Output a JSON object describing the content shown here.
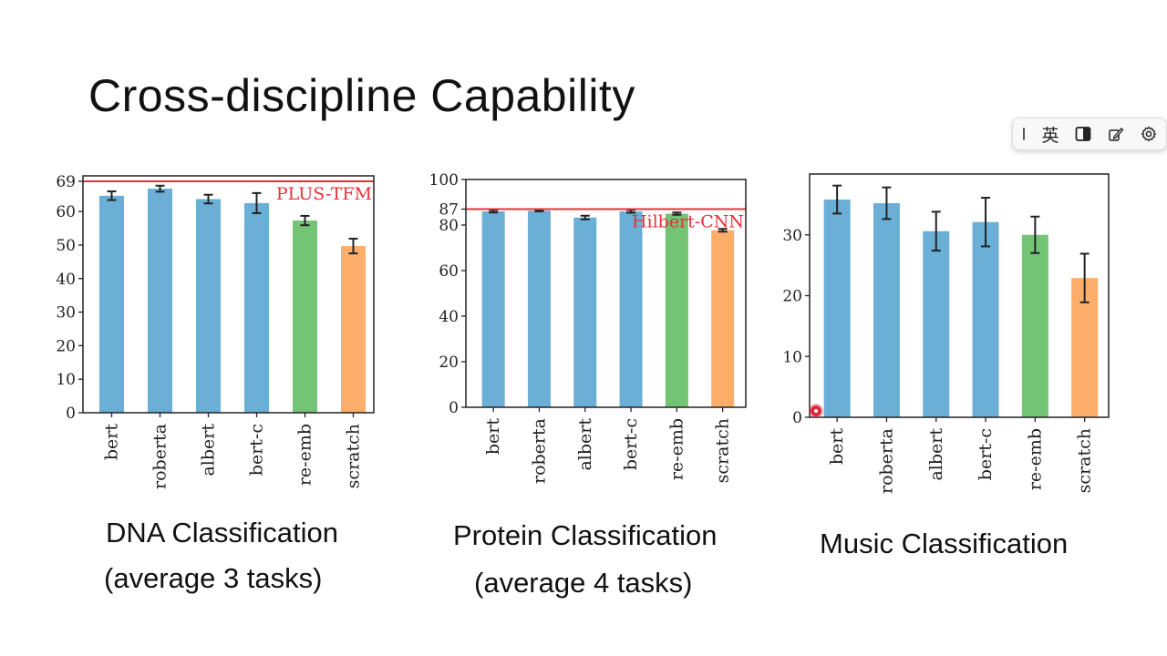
{
  "slide": {
    "title": "Cross-discipline Capability"
  },
  "ime_toolbar": {
    "mode_label": "英"
  },
  "chart_data": [
    {
      "type": "bar",
      "categories": [
        "bert",
        "roberta",
        "albert",
        "bert-c",
        "re-emb",
        "scratch"
      ],
      "values": [
        64.7,
        66.8,
        63.7,
        62.5,
        57.3,
        49.7
      ],
      "errors": [
        1.3,
        0.9,
        1.3,
        3.0,
        1.4,
        2.2
      ],
      "colors": [
        "#6baed6",
        "#6baed6",
        "#6baed6",
        "#6baed6",
        "#74c476",
        "#fdae6b"
      ],
      "ylim": [
        0,
        69
      ],
      "yticks": [
        "0",
        "10",
        "20",
        "30",
        "40",
        "50",
        "60",
        "69"
      ],
      "reference": {
        "value": 69,
        "label": "PLUS-TFM",
        "color": "#e8303a"
      },
      "caption": [
        "DNA Classification",
        "(average 3 tasks)"
      ]
    },
    {
      "type": "bar",
      "categories": [
        "bert",
        "roberta",
        "albert",
        "bert-c",
        "re-emb",
        "scratch"
      ],
      "values": [
        86.0,
        86.3,
        83.3,
        86.0,
        85.0,
        77.7
      ],
      "errors": [
        0.5,
        0.3,
        0.8,
        0.6,
        0.5,
        0.6
      ],
      "colors": [
        "#6baed6",
        "#6baed6",
        "#6baed6",
        "#6baed6",
        "#74c476",
        "#fdae6b"
      ],
      "ylim": [
        0,
        100
      ],
      "yticks": [
        "0",
        "20",
        "40",
        "60",
        "80",
        "87",
        "100"
      ],
      "reference": {
        "value": 87,
        "label": "Hilbert-CNN",
        "color": "#e8303a"
      },
      "caption": [
        "Protein Classification",
        "(average 4 tasks)"
      ]
    },
    {
      "type": "bar",
      "categories": [
        "bert",
        "roberta",
        "albert",
        "bert-c",
        "re-emb",
        "scratch"
      ],
      "values": [
        35.8,
        35.2,
        30.6,
        32.1,
        30.0,
        22.9
      ],
      "errors": [
        2.3,
        2.6,
        3.2,
        4.0,
        3.0,
        4.0
      ],
      "colors": [
        "#6baed6",
        "#6baed6",
        "#6baed6",
        "#6baed6",
        "#74c476",
        "#fdae6b"
      ],
      "ylim": [
        0,
        40
      ],
      "yticks": [
        "0",
        "10",
        "20",
        "30"
      ],
      "reference": null,
      "caption": [
        "Music Classification"
      ]
    }
  ]
}
